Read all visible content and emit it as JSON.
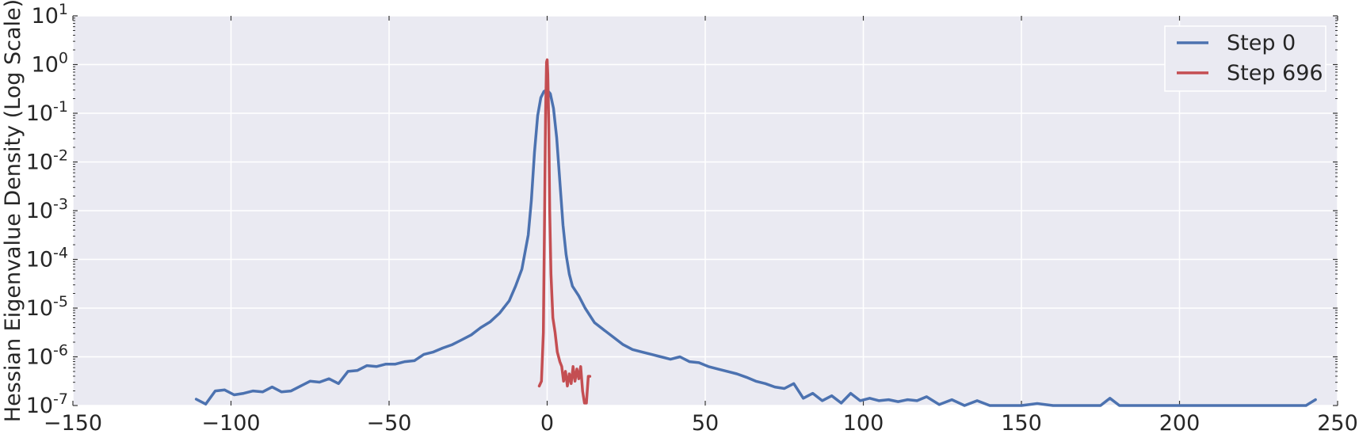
{
  "chart_data": {
    "type": "line",
    "title": "",
    "xlabel": "",
    "ylabel": "Hessian Eigenvalue Density (Log Scale)",
    "xlim": [
      -150,
      250
    ],
    "ylim_log10": [
      -7,
      1
    ],
    "yscale": "log",
    "grid": true,
    "legend_position": "top-right",
    "x_ticks": [
      -150,
      -100,
      -50,
      0,
      50,
      100,
      150,
      200,
      250
    ],
    "x_tick_labels": [
      "−150",
      "−100",
      "−50",
      "0",
      "50",
      "100",
      "150",
      "200",
      "250"
    ],
    "y_tick_exponents": [
      1,
      0,
      -1,
      -2,
      -3,
      -4,
      -5,
      -6,
      -7
    ],
    "y_tick_base": "10",
    "y_tick_sup": [
      "1",
      "0",
      "-1",
      "-2",
      "-3",
      "-4",
      "-5",
      "-6",
      "-7"
    ],
    "colors": {
      "background": "#eaeaf2",
      "grid": "#ffffff"
    },
    "series": [
      {
        "name": "Step 0",
        "color": "#4c72b0",
        "x": [
          -111,
          -108,
          -105,
          -102,
          -99,
          -96,
          -93,
          -90,
          -87,
          -84,
          -81,
          -78,
          -75,
          -72,
          -69,
          -66,
          -63,
          -60,
          -57,
          -54,
          -51,
          -48,
          -45,
          -42,
          -39,
          -36,
          -33,
          -30,
          -27,
          -24,
          -21,
          -18,
          -15,
          -12,
          -10,
          -8,
          -6,
          -5,
          -4,
          -3,
          -2,
          -1,
          0,
          1,
          2,
          3,
          4,
          5,
          6,
          7,
          8,
          10,
          12,
          15,
          18,
          21,
          24,
          27,
          30,
          33,
          36,
          39,
          42,
          45,
          48,
          51,
          54,
          57,
          60,
          63,
          66,
          69,
          72,
          75,
          78,
          81,
          84,
          87,
          90,
          93,
          96,
          99,
          102,
          105,
          108,
          111,
          114,
          117,
          120,
          124,
          128,
          132,
          136,
          140,
          145,
          150,
          155,
          160,
          165,
          170,
          175,
          178,
          181,
          185,
          190,
          195,
          200,
          205,
          210,
          215,
          220,
          225,
          230,
          235,
          240,
          243
        ],
        "log10_values": [
          -6.87,
          -6.97,
          -6.7,
          -6.68,
          -6.78,
          -6.75,
          -6.7,
          -6.72,
          -6.62,
          -6.72,
          -6.7,
          -6.6,
          -6.5,
          -6.52,
          -6.45,
          -6.55,
          -6.3,
          -6.28,
          -6.18,
          -6.2,
          -6.15,
          -6.15,
          -6.1,
          -6.08,
          -5.95,
          -5.9,
          -5.82,
          -5.75,
          -5.65,
          -5.55,
          -5.4,
          -5.28,
          -5.1,
          -4.85,
          -4.55,
          -4.2,
          -3.5,
          -2.8,
          -1.8,
          -1.05,
          -0.68,
          -0.55,
          -0.52,
          -0.6,
          -0.9,
          -1.5,
          -2.4,
          -3.3,
          -3.9,
          -4.3,
          -4.55,
          -4.75,
          -5.0,
          -5.3,
          -5.45,
          -5.6,
          -5.75,
          -5.85,
          -5.9,
          -5.95,
          -6.0,
          -6.05,
          -6.0,
          -6.1,
          -6.12,
          -6.2,
          -6.25,
          -6.3,
          -6.35,
          -6.42,
          -6.5,
          -6.55,
          -6.62,
          -6.65,
          -6.55,
          -6.85,
          -6.75,
          -6.9,
          -6.8,
          -6.95,
          -6.75,
          -6.9,
          -6.85,
          -6.9,
          -6.88,
          -6.92,
          -6.88,
          -6.9,
          -6.82,
          -6.98,
          -6.88,
          -7.0,
          -6.9,
          -7.0,
          -7.0,
          -7.0,
          -6.96,
          -7.0,
          -7.0,
          -7.0,
          -7.0,
          -6.85,
          -7.0,
          -7.0,
          -7.0,
          -7.0,
          -7.0,
          -7.0,
          -7.0,
          -7.0,
          -7.0,
          -7.0,
          -7.0,
          -7.0,
          -7.0,
          -6.88
        ]
      },
      {
        "name": "Step 696",
        "color": "#c44e52",
        "x": [
          -2.5,
          -1.8,
          -1.2,
          -0.8,
          -0.5,
          -0.2,
          0.0,
          0.2,
          0.5,
          0.8,
          1.2,
          1.8,
          2.5,
          3.2,
          4.0,
          4.6,
          5.2,
          5.8,
          6.4,
          7.0,
          7.6,
          8.2,
          8.8,
          9.4,
          10.0,
          10.6,
          11.2,
          11.8,
          12.4,
          13.0,
          13.5
        ],
        "log10_values": [
          -6.6,
          -6.5,
          -5.5,
          -3.0,
          -1.0,
          0.05,
          0.1,
          -0.2,
          -1.2,
          -3.0,
          -4.3,
          -5.2,
          -5.5,
          -5.9,
          -6.1,
          -6.2,
          -6.5,
          -6.3,
          -6.6,
          -6.35,
          -6.55,
          -6.2,
          -6.5,
          -6.25,
          -6.45,
          -6.2,
          -6.7,
          -6.95,
          -6.95,
          -6.4,
          -6.4
        ]
      }
    ]
  }
}
